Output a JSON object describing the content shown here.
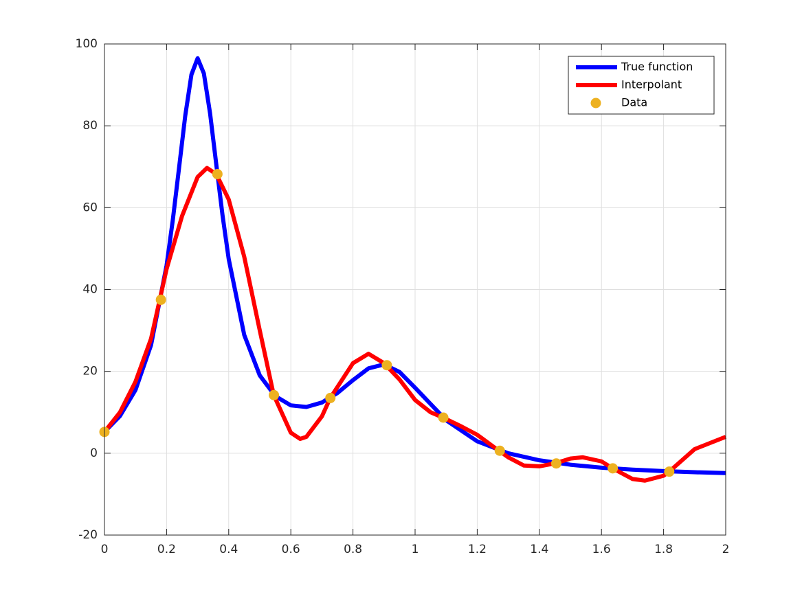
{
  "chart_data": {
    "type": "line",
    "xlim": [
      0,
      2
    ],
    "xticks": [
      0,
      0.2,
      0.4,
      0.6,
      0.8,
      1,
      1.2,
      1.4,
      1.6,
      1.8,
      2
    ],
    "ylim": [
      -20,
      100
    ],
    "yticks": [
      -20,
      0,
      20,
      40,
      60,
      80,
      100
    ],
    "grid": true,
    "legend": "northeast",
    "series": [
      {
        "name": "True function",
        "type": "line",
        "color": "#0000ff",
        "x": [
          0,
          0.05,
          0.1,
          0.15,
          0.2,
          0.22,
          0.24,
          0.26,
          0.28,
          0.3,
          0.32,
          0.34,
          0.36,
          0.38,
          0.4,
          0.45,
          0.5,
          0.55,
          0.6,
          0.65,
          0.7,
          0.75,
          0.8,
          0.85,
          0.9,
          0.95,
          1.0,
          1.1,
          1.2,
          1.3,
          1.4,
          1.5,
          1.6,
          1.7,
          1.8,
          1.9,
          2.0
        ],
        "values": [
          5.18,
          9.1,
          15.47,
          26.43,
          45.89,
          56.97,
          69.63,
          82.43,
          92.51,
          96.5,
          92.81,
          83.04,
          70.55,
          58.2,
          47.45,
          28.89,
          19,
          13.95,
          11.69,
          11.3,
          12.38,
          14.71,
          17.85,
          20.73,
          21.7,
          19.84,
          16,
          8.04,
          2.91,
          -0.01,
          -1.73,
          -2.81,
          -3.53,
          -4.02,
          -4.38,
          -4.65,
          -4.86
        ]
      },
      {
        "name": "Interpolant",
        "type": "line",
        "color": "#ff0000",
        "x": [
          0,
          0.05,
          0.1,
          0.15,
          0.2,
          0.25,
          0.3,
          0.33,
          0.36,
          0.4,
          0.45,
          0.5,
          0.545,
          0.6,
          0.63,
          0.65,
          0.7,
          0.727,
          0.8,
          0.85,
          0.9,
          0.95,
          1.0,
          1.05,
          1.09,
          1.15,
          1.2,
          1.27,
          1.3,
          1.35,
          1.4,
          1.45,
          1.5,
          1.54,
          1.6,
          1.636,
          1.7,
          1.74,
          1.8,
          1.818,
          1.9,
          2.0
        ],
        "values": [
          5.2,
          10,
          17.5,
          28,
          45,
          58,
          67.5,
          69.7,
          68.2,
          62,
          48,
          30,
          14.2,
          5,
          3.5,
          4,
          9,
          13.5,
          22,
          24.3,
          22,
          18,
          13,
          10,
          8.7,
          6.5,
          4.5,
          0.6,
          -1,
          -3,
          -3.2,
          -2.5,
          -1.3,
          -1,
          -2,
          -3.7,
          -6.3,
          -6.7,
          -5.5,
          -4.5,
          1,
          4
        ]
      },
      {
        "name": "Data",
        "type": "scatter",
        "color": "#edb120",
        "x": [
          0,
          0.1818,
          0.3636,
          0.5455,
          0.7273,
          0.9091,
          1.0909,
          1.2727,
          1.4545,
          1.6364,
          1.8182
        ],
        "values": [
          5.2,
          37.5,
          68.2,
          14.2,
          13.5,
          21.5,
          8.7,
          0.6,
          -2.5,
          -3.7,
          -4.5
        ]
      }
    ]
  }
}
